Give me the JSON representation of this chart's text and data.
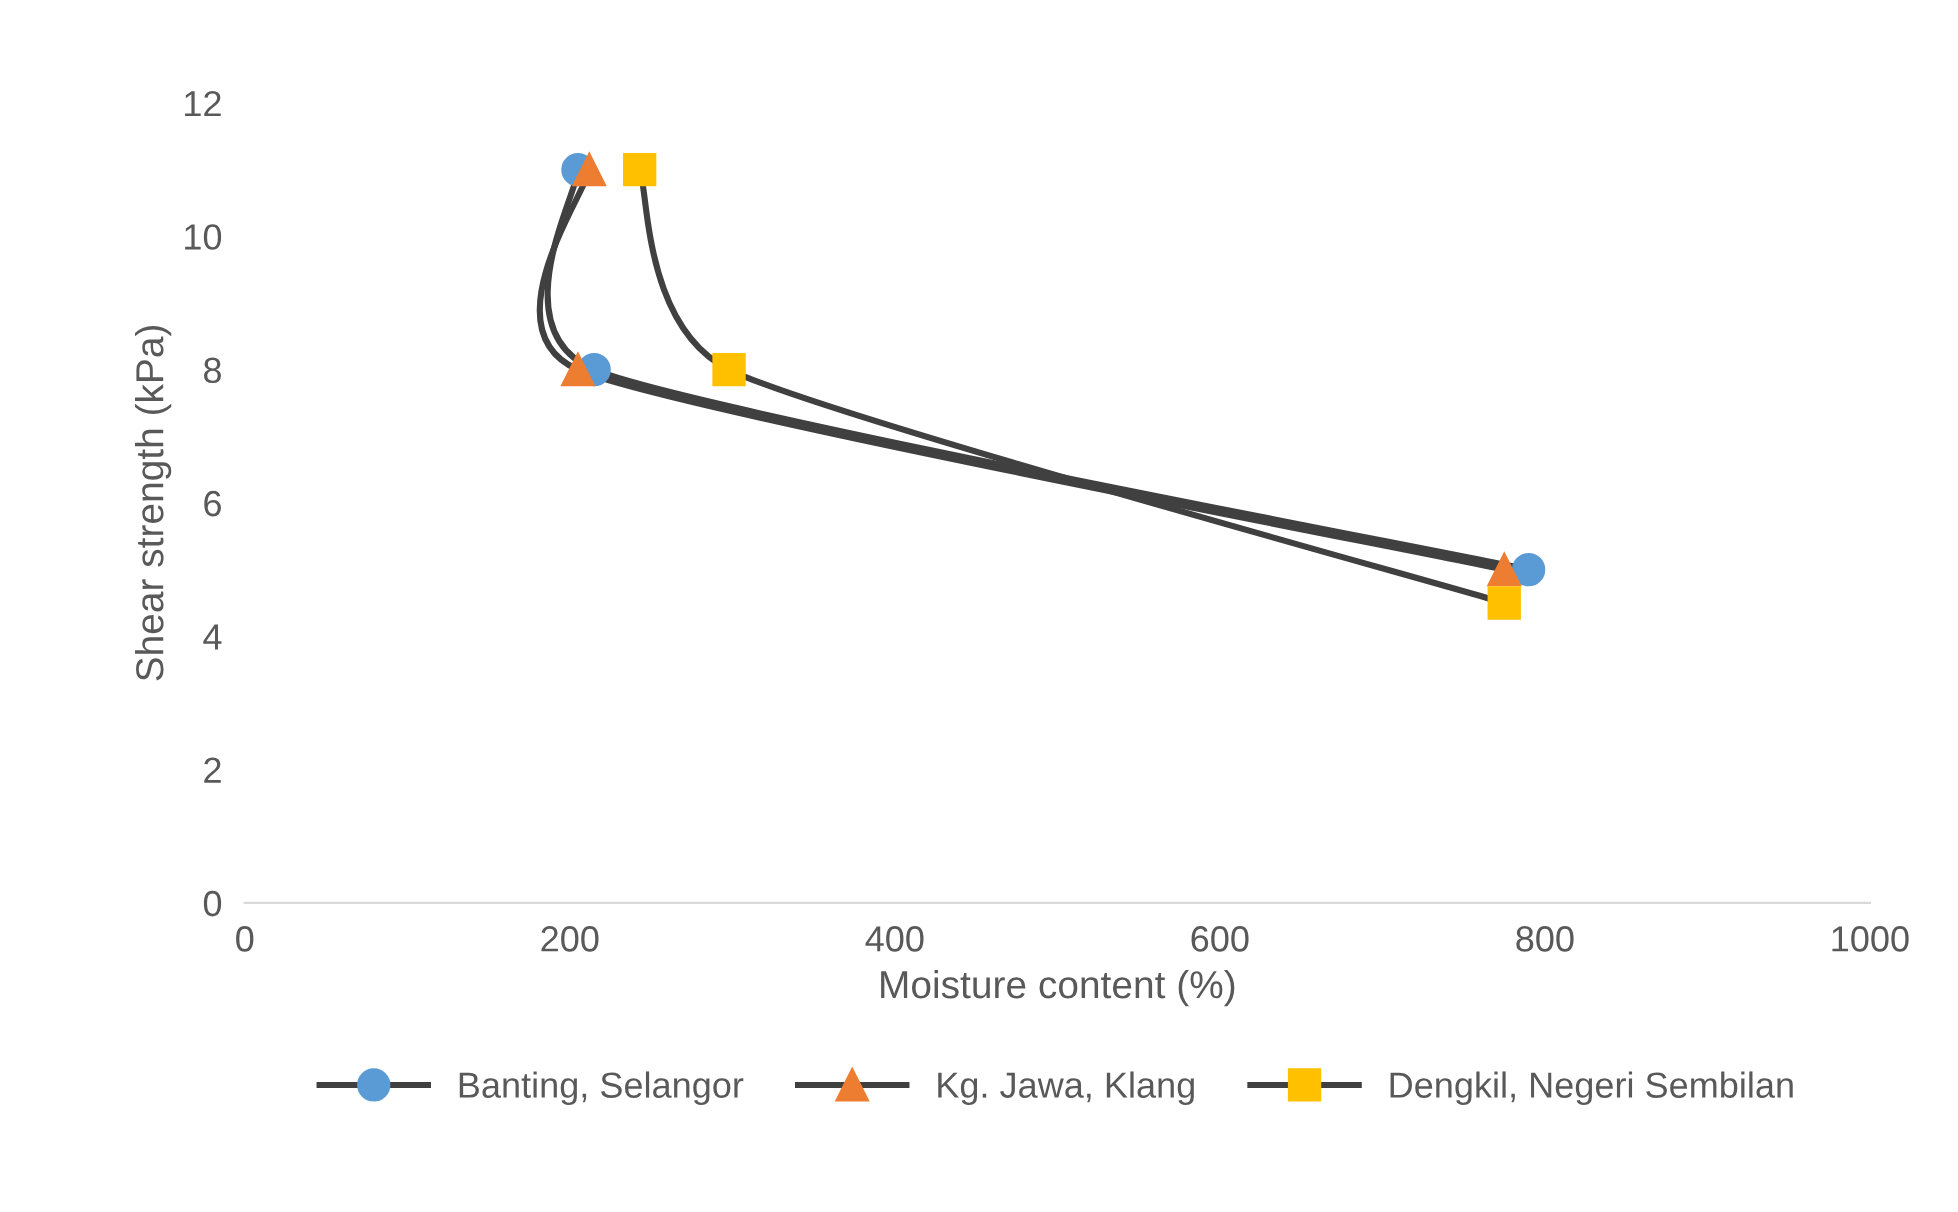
{
  "chart_data": {
    "type": "line",
    "xlabel": "Moisture content (%)",
    "ylabel": "Shear strength (kPa)",
    "xlim": [
      0,
      1000
    ],
    "xticks": [
      0,
      200,
      400,
      600,
      800,
      1000
    ],
    "ylim": [
      0,
      12
    ],
    "yticks": [
      0,
      2,
      4,
      6,
      8,
      10,
      12
    ],
    "grid": false,
    "legend": "bottom",
    "line_style": "solid",
    "series": [
      {
        "name": "Banting, Selangor",
        "color": "#5b9bd5",
        "marker": "circle",
        "x": [
          205,
          215,
          790
        ],
        "values": [
          11,
          8,
          5
        ]
      },
      {
        "name": "Kg. Jawa, Klang",
        "color": "#ed7d31",
        "marker": "triangle",
        "x": [
          212,
          205,
          775
        ],
        "values": [
          11,
          8,
          5
        ]
      },
      {
        "name": "Dengkil, Negeri Sembilan",
        "color": "#ffc000",
        "marker": "square",
        "x": [
          243,
          298,
          775
        ],
        "values": [
          11,
          8,
          4.5
        ]
      }
    ]
  }
}
